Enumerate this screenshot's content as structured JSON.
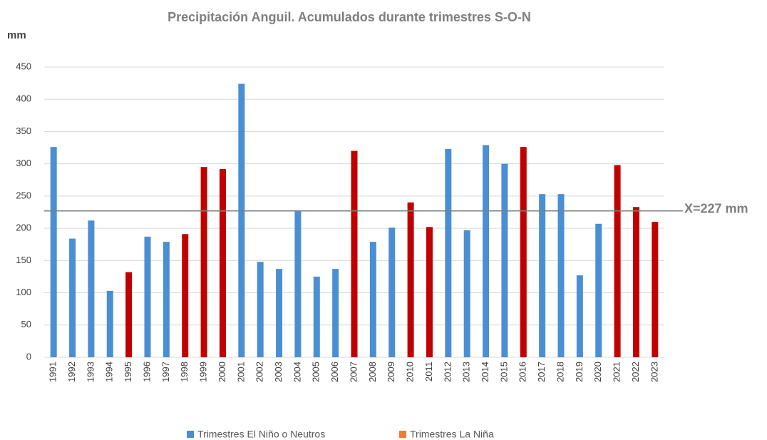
{
  "chart_data": {
    "type": "bar",
    "title": "Precipitación Anguil. Acumulados durante trimestres S-O-N",
    "y_label": "mm",
    "categories": [
      "1991",
      "1992",
      "1993",
      "1994",
      "1995",
      "1996",
      "1997",
      "1998",
      "1999",
      "2000",
      "2001",
      "2002",
      "2003",
      "2004",
      "2005",
      "2006",
      "2007",
      "2008",
      "2009",
      "2010",
      "2011",
      "2012",
      "2013",
      "2014",
      "2015",
      "2016",
      "2017",
      "2018",
      "2019",
      "2020",
      "2021",
      "2022",
      "2023"
    ],
    "series": [
      {
        "name": "Trimestres El Niño o Neutros",
        "color": "#4a8fd4",
        "legend_color": "#4a8fd4",
        "values": [
          326,
          184,
          212,
          103,
          null,
          187,
          179,
          null,
          null,
          null,
          424,
          148,
          137,
          227,
          125,
          137,
          null,
          179,
          201,
          null,
          null,
          323,
          197,
          329,
          300,
          null,
          253,
          253,
          127,
          207,
          null,
          null,
          null
        ]
      },
      {
        "name": "Trimestres La Niña",
        "color": "#c00000",
        "legend_color": "#ed7d31",
        "values": [
          null,
          null,
          null,
          null,
          132,
          null,
          null,
          191,
          295,
          292,
          null,
          null,
          null,
          null,
          null,
          null,
          320,
          null,
          null,
          240,
          202,
          null,
          null,
          null,
          null,
          326,
          null,
          null,
          null,
          null,
          298,
          233,
          210
        ]
      }
    ],
    "ylim": [
      0,
      450
    ],
    "yticks": [
      0,
      50,
      100,
      150,
      200,
      250,
      300,
      350,
      400,
      450
    ],
    "grid": true,
    "reference_line": {
      "value": 227,
      "label": "X=227 mm",
      "color": "#7f7f7f"
    },
    "legend": "bottom"
  }
}
